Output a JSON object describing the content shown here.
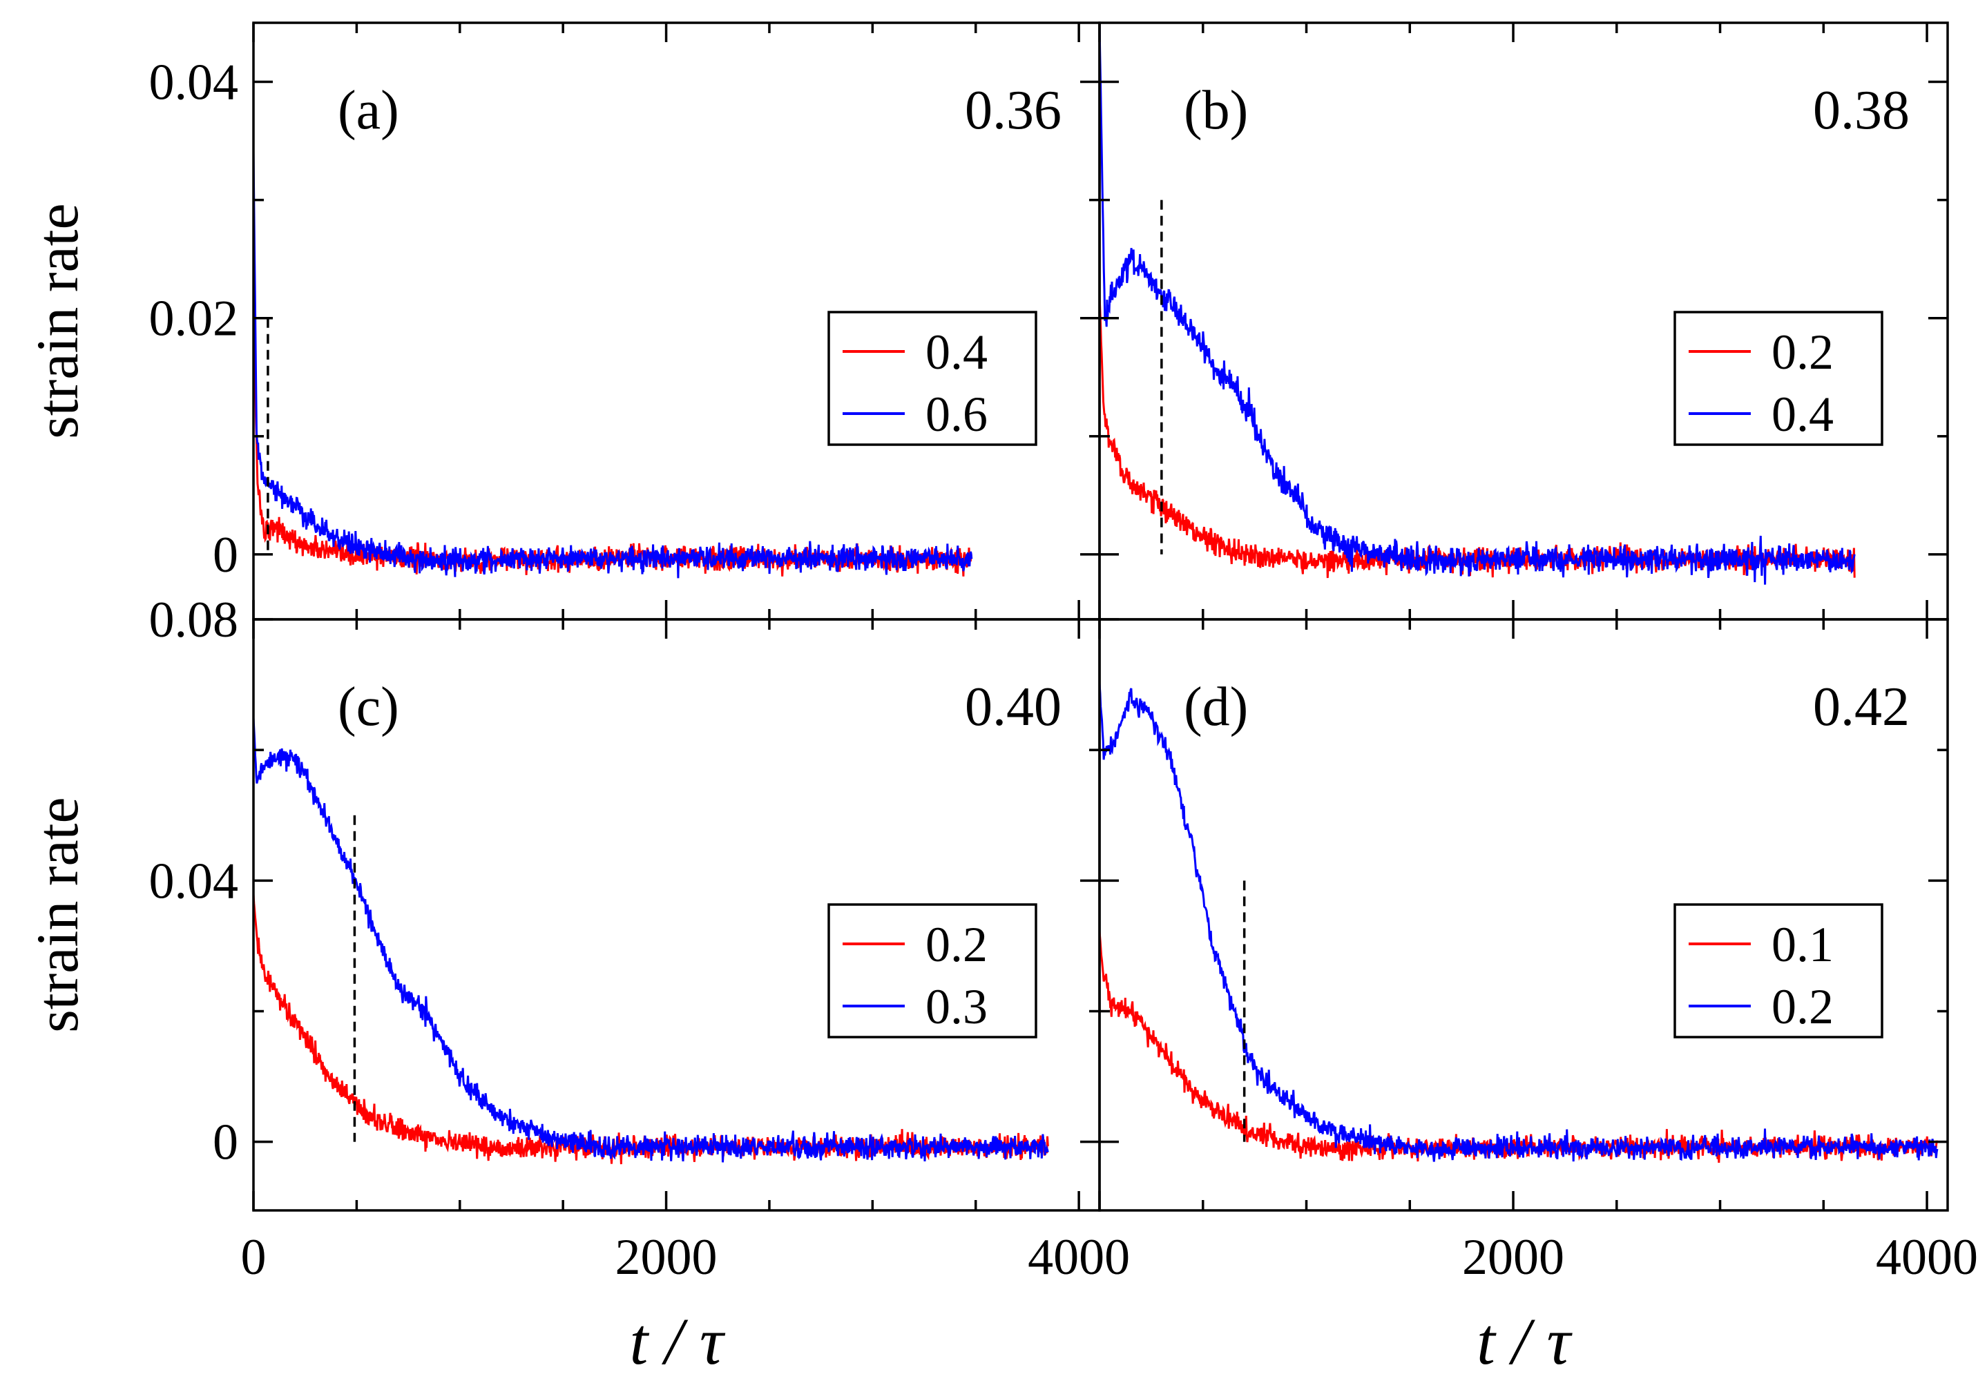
{
  "chart_data": [
    {
      "type": "line",
      "panel_label": "(a)",
      "value_label": "0.36",
      "ylabel": "strain rate",
      "xlabel": "",
      "xlim": [
        0,
        4100
      ],
      "ylim": [
        -0.0055,
        0.045
      ],
      "x_ticks": [],
      "y_ticks": [
        0,
        0.02,
        0.04
      ],
      "y_tick_labels": [
        "0",
        "0.02",
        "0.04"
      ],
      "marker_x": 70,
      "marker_ymax": 0.02,
      "series": [
        {
          "name": "0.4",
          "color": "#ff0000",
          "peak": 0.02,
          "t_end": 3480,
          "decay": 120,
          "noise": 0.0009,
          "points": [
            [
              0,
              0.02
            ],
            [
              20,
              0.006
            ],
            [
              50,
              0.002
            ],
            [
              100,
              0.0025
            ],
            [
              200,
              0.001
            ],
            [
              400,
              0.0
            ],
            [
              1000,
              -0.0005
            ],
            [
              2000,
              -0.0003
            ],
            [
              3480,
              -0.0005
            ]
          ]
        },
        {
          "name": "0.6",
          "color": "#0000ff",
          "peak": 0.034,
          "t_end": 3480,
          "decay": 150,
          "noise": 0.0009,
          "points": [
            [
              0,
              0.034
            ],
            [
              15,
              0.01
            ],
            [
              40,
              0.007
            ],
            [
              100,
              0.0055
            ],
            [
              200,
              0.004
            ],
            [
              300,
              0.0025
            ],
            [
              500,
              0.0005
            ],
            [
              800,
              -0.0005
            ],
            [
              2000,
              -0.0003
            ],
            [
              3480,
              -0.0004
            ]
          ]
        }
      ]
    },
    {
      "type": "line",
      "panel_label": "(b)",
      "value_label": "0.38",
      "ylabel": "",
      "xlabel": "",
      "xlim": [
        0,
        4100
      ],
      "ylim": [
        -0.0055,
        0.045
      ],
      "x_ticks": [],
      "y_ticks": [
        0,
        0.02,
        0.04
      ],
      "y_tick_labels": [],
      "marker_x": 300,
      "marker_ymax": 0.03,
      "series": [
        {
          "name": "0.2",
          "color": "#ff0000",
          "peak": 0.022,
          "t_end": 3650,
          "decay": 250,
          "noise": 0.0009,
          "points": [
            [
              0,
              0.022
            ],
            [
              20,
              0.012
            ],
            [
              60,
              0.009
            ],
            [
              150,
              0.006
            ],
            [
              300,
              0.004
            ],
            [
              500,
              0.0015
            ],
            [
              700,
              0.0
            ],
            [
              1000,
              -0.0005
            ],
            [
              2000,
              -0.0004
            ],
            [
              3650,
              -0.0004
            ]
          ]
        },
        {
          "name": "0.4",
          "color": "#0000ff",
          "peak": 0.045,
          "t_end": 3650,
          "decay": 400,
          "noise": 0.001,
          "points": [
            [
              0,
              0.045
            ],
            [
              25,
              0.02
            ],
            [
              60,
              0.022
            ],
            [
              150,
              0.025
            ],
            [
              300,
              0.022
            ],
            [
              450,
              0.019
            ],
            [
              550,
              0.016
            ],
            [
              650,
              0.014
            ],
            [
              750,
              0.011
            ],
            [
              850,
              0.007
            ],
            [
              950,
              0.005
            ],
            [
              1050,
              0.002
            ],
            [
              1200,
              0.0005
            ],
            [
              1500,
              -0.0005
            ],
            [
              2000,
              -0.0004
            ],
            [
              3650,
              -0.0004
            ]
          ]
        }
      ]
    },
    {
      "type": "line",
      "panel_label": "(c)",
      "value_label": "0.40",
      "ylabel": "strain rate",
      "xlabel": "t / τ",
      "xlim": [
        0,
        4100
      ],
      "ylim": [
        -0.0105,
        0.08
      ],
      "x_ticks": [
        0,
        2000,
        4000
      ],
      "x_tick_labels": [
        "0",
        "2000",
        "4000"
      ],
      "y_ticks": [
        0,
        0.04,
        0.08
      ],
      "y_tick_labels": [
        "0",
        "0.04",
        "0.08"
      ],
      "marker_x": 490,
      "marker_ymax": 0.05,
      "series": [
        {
          "name": "0.2",
          "color": "#ff0000",
          "peak": 0.038,
          "t_end": 3850,
          "decay": 300,
          "noise": 0.0015,
          "points": [
            [
              0,
              0.038
            ],
            [
              20,
              0.03
            ],
            [
              60,
              0.025
            ],
            [
              150,
              0.021
            ],
            [
              250,
              0.016
            ],
            [
              350,
              0.011
            ],
            [
              450,
              0.007
            ],
            [
              550,
              0.004
            ],
            [
              700,
              0.002
            ],
            [
              900,
              0.0
            ],
            [
              1200,
              -0.001
            ],
            [
              2000,
              -0.0008
            ],
            [
              3850,
              -0.0008
            ]
          ]
        },
        {
          "name": "0.3",
          "color": "#0000ff",
          "peak": 0.065,
          "t_end": 3850,
          "decay": 500,
          "noise": 0.0015,
          "points": [
            [
              0,
              0.065
            ],
            [
              15,
              0.055
            ],
            [
              60,
              0.058
            ],
            [
              200,
              0.059
            ],
            [
              300,
              0.053
            ],
            [
              400,
              0.046
            ],
            [
              500,
              0.04
            ],
            [
              600,
              0.031
            ],
            [
              700,
              0.024
            ],
            [
              850,
              0.019
            ],
            [
              950,
              0.013
            ],
            [
              1050,
              0.008
            ],
            [
              1200,
              0.004
            ],
            [
              1400,
              0.001
            ],
            [
              1700,
              -0.001
            ],
            [
              2000,
              -0.0008
            ],
            [
              3850,
              -0.0008
            ]
          ]
        }
      ]
    },
    {
      "type": "line",
      "panel_label": "(d)",
      "value_label": "0.42",
      "ylabel": "",
      "xlabel": "t / τ",
      "xlim": [
        0,
        4100
      ],
      "ylim": [
        -0.0105,
        0.08
      ],
      "x_ticks": [
        0,
        2000,
        4000
      ],
      "x_tick_labels": [
        "",
        "2000",
        "4000"
      ],
      "y_ticks": [
        0,
        0.04,
        0.08
      ],
      "y_tick_labels": [],
      "marker_x": 700,
      "marker_ymax": 0.04,
      "series": [
        {
          "name": "0.1",
          "color": "#ff0000",
          "peak": 0.032,
          "t_end": 4050,
          "decay": 300,
          "noise": 0.0015,
          "points": [
            [
              0,
              0.032
            ],
            [
              20,
              0.025
            ],
            [
              60,
              0.021
            ],
            [
              150,
              0.02
            ],
            [
              250,
              0.016
            ],
            [
              350,
              0.012
            ],
            [
              450,
              0.008
            ],
            [
              550,
              0.005
            ],
            [
              700,
              0.002
            ],
            [
              900,
              0.0
            ],
            [
              1200,
              -0.001
            ],
            [
              2000,
              -0.0008
            ],
            [
              4050,
              -0.0008
            ]
          ]
        },
        {
          "name": "0.2",
          "color": "#0000ff",
          "peak": 0.07,
          "t_end": 4050,
          "decay": 500,
          "noise": 0.0015,
          "points": [
            [
              0,
              0.07
            ],
            [
              20,
              0.06
            ],
            [
              60,
              0.06
            ],
            [
              150,
              0.068
            ],
            [
              250,
              0.065
            ],
            [
              350,
              0.058
            ],
            [
              450,
              0.045
            ],
            [
              550,
              0.03
            ],
            [
              650,
              0.02
            ],
            [
              750,
              0.011
            ],
            [
              850,
              0.008
            ],
            [
              950,
              0.005
            ],
            [
              1100,
              0.002
            ],
            [
              1300,
              0.0
            ],
            [
              1600,
              -0.001
            ],
            [
              2000,
              -0.0008
            ],
            [
              4050,
              -0.0008
            ]
          ]
        }
      ]
    }
  ]
}
